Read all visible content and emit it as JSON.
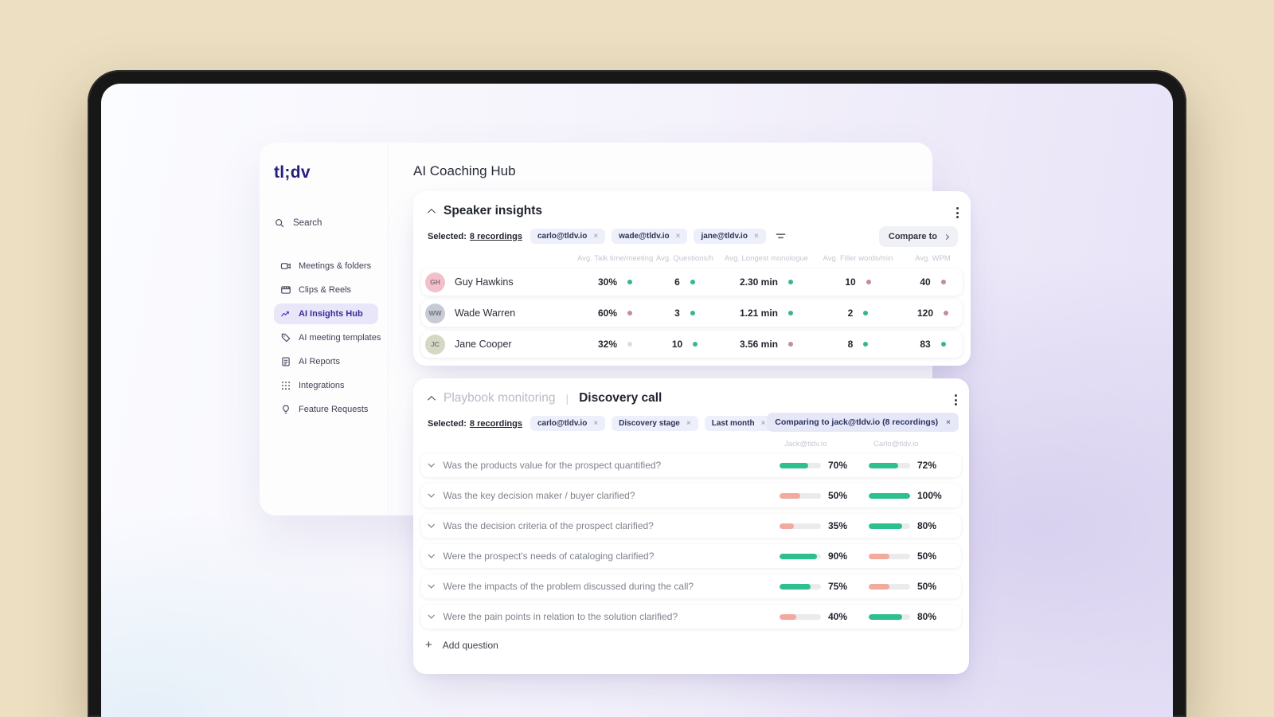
{
  "app": {
    "logo": "tl;dv",
    "page_title": "AI Coaching Hub"
  },
  "sidebar": {
    "search_label": "Search",
    "items": [
      {
        "label": "Meetings & folders",
        "icon": "video-camera-icon",
        "active": false
      },
      {
        "label": "Clips & Reels",
        "icon": "clapperboard-icon",
        "active": false
      },
      {
        "label": "AI Insights Hub",
        "icon": "chart-line-icon",
        "active": true
      },
      {
        "label": "AI meeting templates",
        "icon": "tag-icon",
        "active": false
      },
      {
        "label": "AI Reports",
        "icon": "report-icon",
        "active": false
      },
      {
        "label": "Integrations",
        "icon": "grid-dots-icon",
        "active": false
      },
      {
        "label": "Feature Requests",
        "icon": "lightbulb-icon",
        "active": false
      }
    ]
  },
  "speaker_insights": {
    "title": "Speaker insights",
    "selected_label": "Selected:",
    "selected_count": "8 recordings",
    "chips": [
      "carlo@tldv.io",
      "wade@tldv.io",
      "jane@tldv.io"
    ],
    "compare_button": "Compare to",
    "columns": [
      "Avg. Talk time/meeting",
      "Avg. Questions/h",
      "Avg. Longest monologue",
      "Avg. Filler words/min",
      "Avg. WPM"
    ],
    "rows": [
      {
        "name": "Guy Hawkins",
        "avatar_color": "#f1c0cb",
        "metrics": [
          {
            "value": "30%",
            "status": "good"
          },
          {
            "value": "6",
            "status": "good"
          },
          {
            "value": "2.30 min",
            "status": "good"
          },
          {
            "value": "10",
            "status": "bad"
          },
          {
            "value": "40",
            "status": "bad"
          }
        ]
      },
      {
        "name": "Wade Warren",
        "avatar_color": "#c7cbd4",
        "metrics": [
          {
            "value": "60%",
            "status": "bad"
          },
          {
            "value": "3",
            "status": "good"
          },
          {
            "value": "1.21 min",
            "status": "good"
          },
          {
            "value": "2",
            "status": "good"
          },
          {
            "value": "120",
            "status": "bad"
          }
        ]
      },
      {
        "name": "Jane Cooper",
        "avatar_color": "#d6d8c6",
        "metrics": [
          {
            "value": "32%",
            "status": "neutral"
          },
          {
            "value": "10",
            "status": "good"
          },
          {
            "value": "3.56 min",
            "status": "bad"
          },
          {
            "value": "8",
            "status": "good"
          },
          {
            "value": "83",
            "status": "good"
          }
        ]
      }
    ]
  },
  "playbook": {
    "section_label": "Playbook monitoring",
    "divider": "|",
    "title": "Discovery call",
    "selected_label": "Selected:",
    "selected_count": "8 recordings",
    "chips": [
      "carlo@tldv.io",
      "Discovery stage",
      "Last month"
    ],
    "comparing_label": "Comparing to jack@tldv.io (8 recordings)",
    "columns": [
      "Jack@tldv.io",
      "Carlo@tldv.io"
    ],
    "questions": [
      {
        "text": "Was the products value for the prospect quantified?",
        "left_pct": 70,
        "left_status": "good",
        "right_pct": 72,
        "right_status": "good"
      },
      {
        "text": "Was the key decision maker / buyer clarified?",
        "left_pct": 50,
        "left_status": "bad",
        "right_pct": 100,
        "right_status": "good"
      },
      {
        "text": "Was the decision criteria of the prospect clarified?",
        "left_pct": 35,
        "left_status": "bad",
        "right_pct": 80,
        "right_status": "good"
      },
      {
        "text": "Were the prospect's needs of cataloging clarified?",
        "left_pct": 90,
        "left_status": "good",
        "right_pct": 50,
        "right_status": "bad"
      },
      {
        "text": "Were the impacts of the problem discussed during the call?",
        "left_pct": 75,
        "left_status": "good",
        "right_pct": 50,
        "right_status": "bad"
      },
      {
        "text": "Were the pain points in relation to the solution clarified?",
        "left_pct": 40,
        "left_status": "bad",
        "right_pct": 80,
        "right_status": "good"
      }
    ],
    "add_question_label": "Add question"
  },
  "colors": {
    "dot_good": "#35b886",
    "dot_bad": "#c18e96",
    "dot_neutral": "#dcdce0",
    "bar_good": "#2cc091",
    "bar_bad": "#f2a99e",
    "accent_indigo": "#3d33b5",
    "background_beige": "#ecdfc2"
  }
}
